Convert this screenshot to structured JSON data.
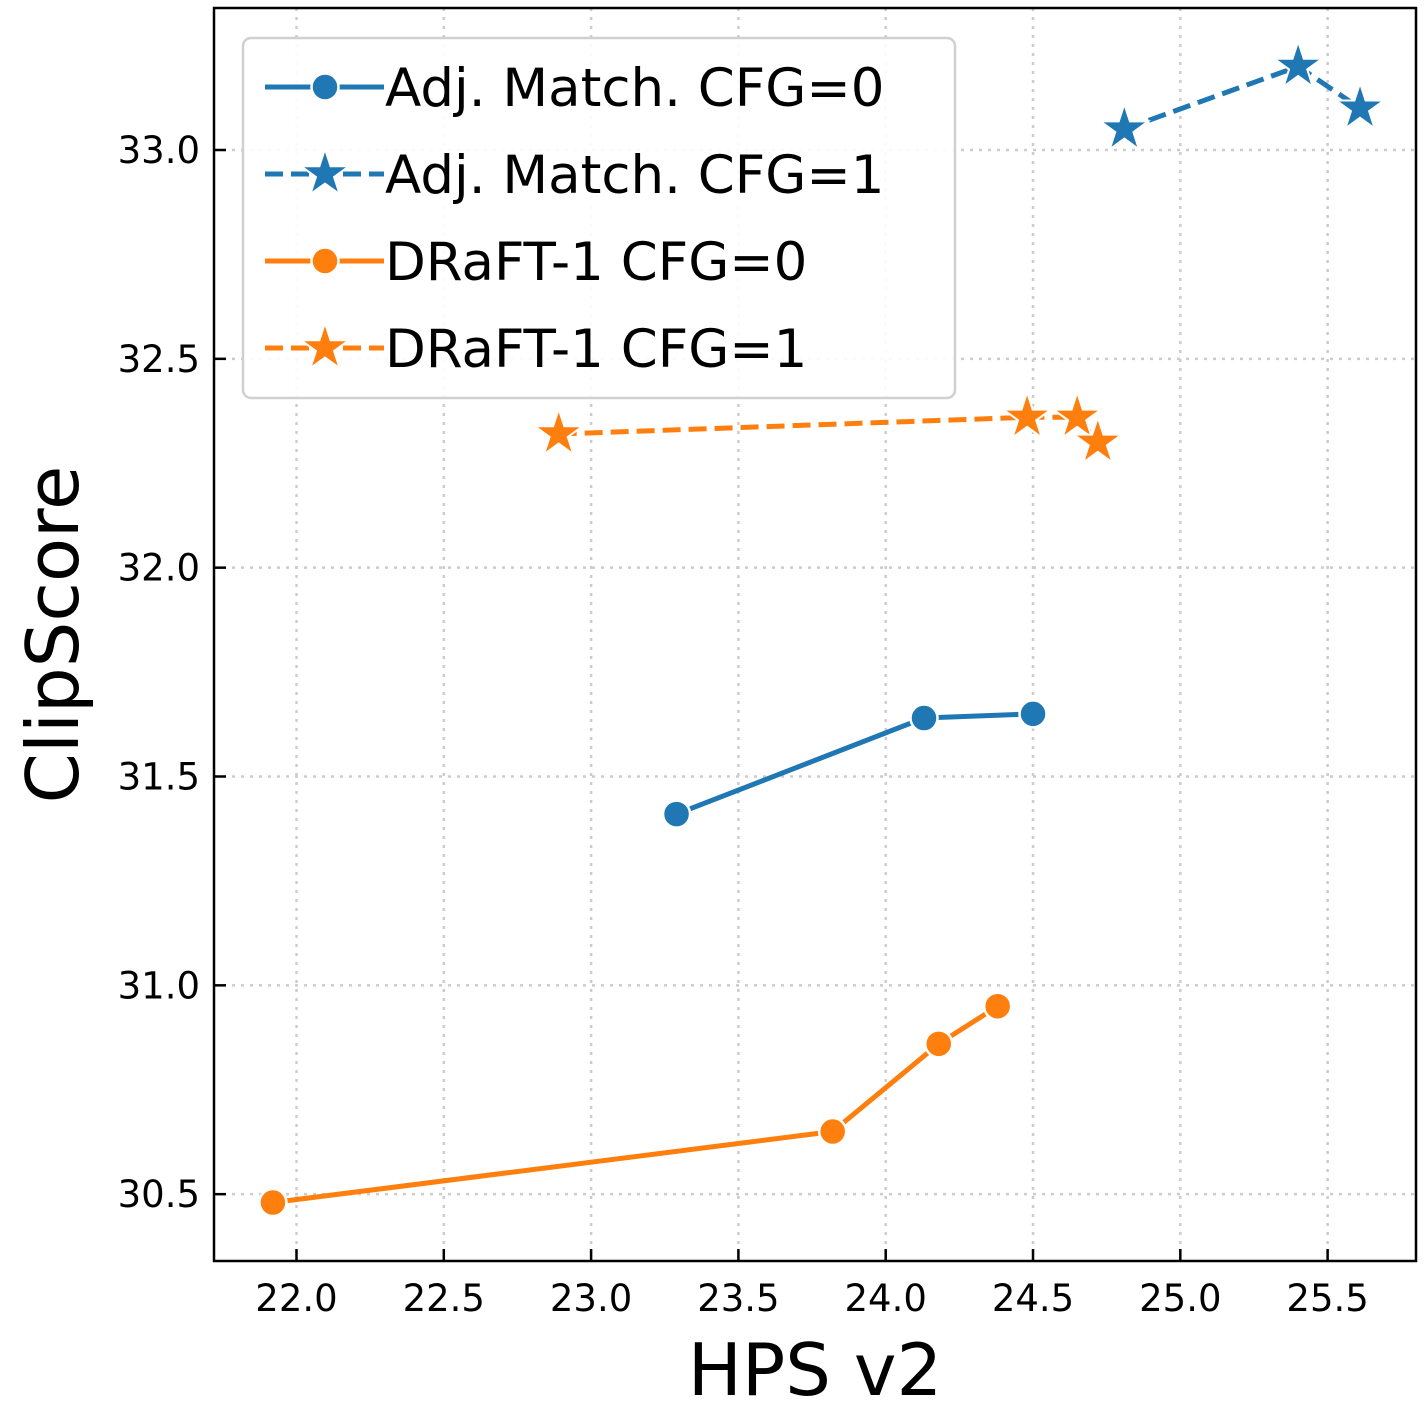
{
  "chart_data": {
    "type": "line",
    "xlabel": "HPS v2",
    "ylabel": "ClipScore",
    "xlim": [
      21.72,
      25.8
    ],
    "ylim": [
      30.34,
      33.34
    ],
    "x_ticks": [
      "22.0",
      "22.5",
      "23.0",
      "23.5",
      "24.0",
      "24.5",
      "25.0",
      "25.5"
    ],
    "y_ticks": [
      "30.5",
      "31.0",
      "31.5",
      "32.0",
      "32.5",
      "33.0"
    ],
    "grid": true,
    "legend_position": "upper-left",
    "series": [
      {
        "name": "Adj. Match. CFG=0",
        "color": "#1f77b4",
        "line_style": "solid",
        "marker": "circle",
        "points": [
          [
            23.29,
            31.41
          ],
          [
            24.13,
            31.64
          ],
          [
            24.5,
            31.65
          ]
        ]
      },
      {
        "name": "Adj. Match. CFG=1",
        "color": "#1f77b4",
        "line_style": "dashed",
        "marker": "star",
        "points": [
          [
            24.81,
            33.05
          ],
          [
            25.4,
            33.2
          ],
          [
            25.61,
            33.1
          ]
        ]
      },
      {
        "name": "DRaFT-1 CFG=0",
        "color": "#ff7f0e",
        "line_style": "solid",
        "marker": "circle",
        "points": [
          [
            21.92,
            30.48
          ],
          [
            23.82,
            30.65
          ],
          [
            24.18,
            30.86
          ],
          [
            24.38,
            30.95
          ]
        ]
      },
      {
        "name": "DRaFT-1 CFG=1",
        "color": "#ff7f0e",
        "line_style": "dashed",
        "marker": "star",
        "points": [
          [
            22.89,
            32.32
          ],
          [
            24.48,
            32.36
          ],
          [
            24.65,
            32.36
          ],
          [
            24.72,
            32.3
          ]
        ]
      }
    ]
  }
}
